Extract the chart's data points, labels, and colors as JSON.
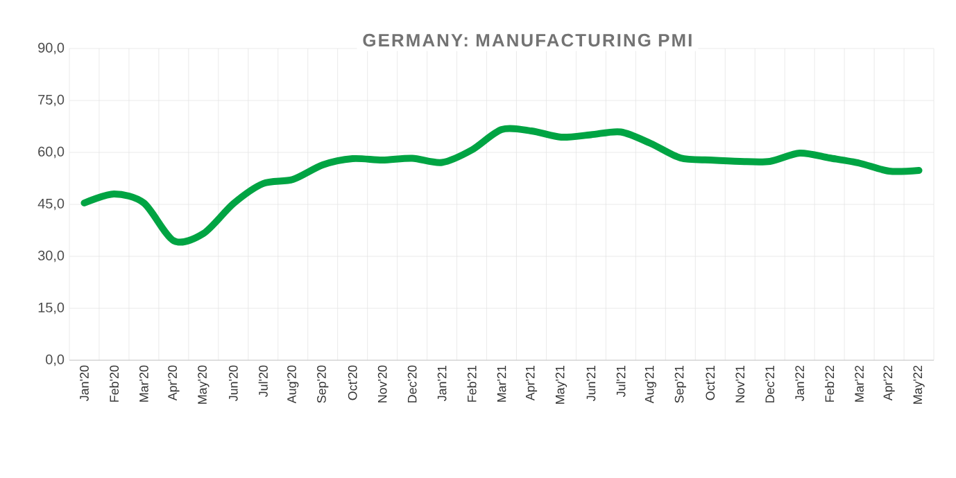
{
  "chart_data": {
    "type": "line",
    "title": "GERMANY: MANUFACTURING PMI",
    "categories": [
      "Jan'20",
      "Feb'20",
      "Mar'20",
      "Apr'20",
      "May'20",
      "Jun'20",
      "Jul'20",
      "Aug'20",
      "Sep'20",
      "Oct'20",
      "Nov'20",
      "Dec'20",
      "Jan'21",
      "Feb'21",
      "Mar'21",
      "Apr'21",
      "May'21",
      "Jun'21",
      "Jul'21",
      "Aug'21",
      "Sep'21",
      "Oct'21",
      "Nov'21",
      "Dec'21",
      "Jan'22",
      "Feb'22",
      "Mar'22",
      "Apr'22",
      "May'22"
    ],
    "values": [
      45.4,
      48.0,
      45.4,
      34.5,
      36.6,
      45.2,
      51.0,
      52.2,
      56.4,
      58.2,
      57.8,
      58.3,
      57.1,
      60.7,
      66.6,
      66.2,
      64.4,
      65.1,
      65.9,
      62.6,
      58.4,
      57.8,
      57.4,
      57.4,
      59.8,
      58.4,
      56.9,
      54.6,
      54.8
    ],
    "color": "#00a443",
    "ylim": [
      0,
      90
    ],
    "yticks": [
      {
        "value": 0,
        "label": "0,0"
      },
      {
        "value": 15,
        "label": "15,0"
      },
      {
        "value": 30,
        "label": "30,0"
      },
      {
        "value": 45,
        "label": "45,0"
      },
      {
        "value": 60,
        "label": "60,0"
      },
      {
        "value": 75,
        "label": "75,0"
      },
      {
        "value": 90,
        "label": "90,0"
      }
    ],
    "grid": true,
    "marker": "none",
    "line_style": "solid"
  }
}
